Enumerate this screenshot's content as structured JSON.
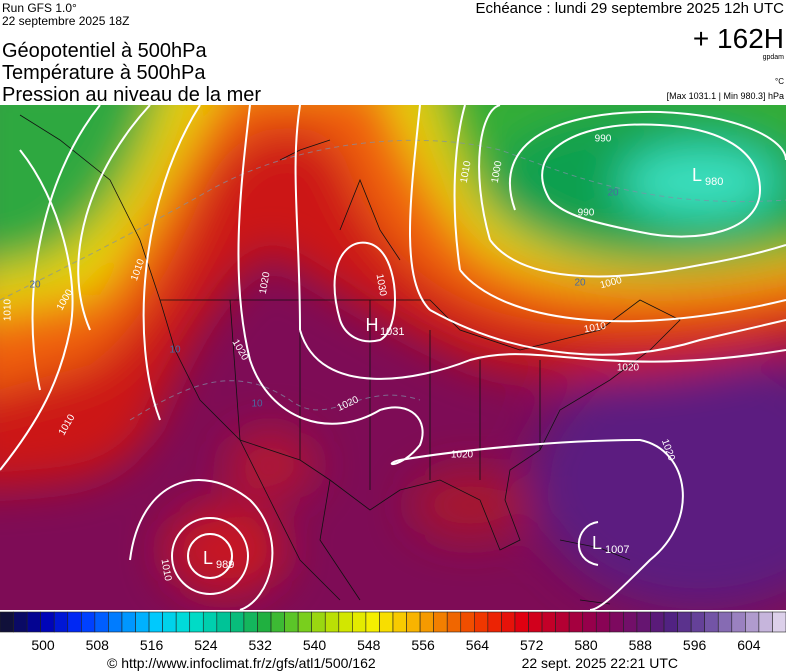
{
  "header": {
    "run": "Run GFS 1.0°",
    "date": "22 septembre 2025 18Z",
    "forecast": "Echéance : lundi 29 septembre 2025 12h UTC",
    "titles": [
      "Géopotentiel à 500hPa",
      "Température à 500hPa",
      "Pression au niveau de la mer"
    ],
    "lead_time": "+ 162H",
    "unit_height": "gpdam",
    "unit_temp": "°C",
    "pressure_range": "[Max 1031.1 | Min 980.3] hPa"
  },
  "map": {
    "isobar_labels": [
      990,
      990,
      1000,
      1010,
      1000,
      1010,
      1020,
      1020,
      1020,
      1020,
      1020,
      1020,
      1030,
      1010,
      1000,
      1010,
      1010,
      1010
    ],
    "temperature_labels": [
      20,
      20,
      20,
      10,
      10
    ],
    "centers": [
      {
        "type": "H",
        "value": 1031
      },
      {
        "type": "L",
        "value": 980
      },
      {
        "type": "L",
        "value": 989
      },
      {
        "type": "L",
        "value": 1007
      }
    ]
  },
  "colorbar": {
    "labels": [
      500,
      508,
      516,
      524,
      532,
      540,
      548,
      556,
      564,
      572,
      580,
      588,
      596,
      604
    ],
    "colors": [
      "#10103a",
      "#0000b0",
      "#0030ff",
      "#0080ff",
      "#00c8ff",
      "#00e0d0",
      "#00c090",
      "#20b040",
      "#70cc20",
      "#c8e400",
      "#f8f000",
      "#f8b800",
      "#f07000",
      "#f03000",
      "#e00010",
      "#b80030",
      "#900050",
      "#70106a",
      "#502080",
      "#6a4aa0",
      "#a088c4",
      "#dcd0ea"
    ]
  },
  "footer": {
    "url": "© http://www.infoclimat.fr/z/gfs/atl1/500/162",
    "timestamp": "22 sept. 2025 22:21 UTC"
  }
}
